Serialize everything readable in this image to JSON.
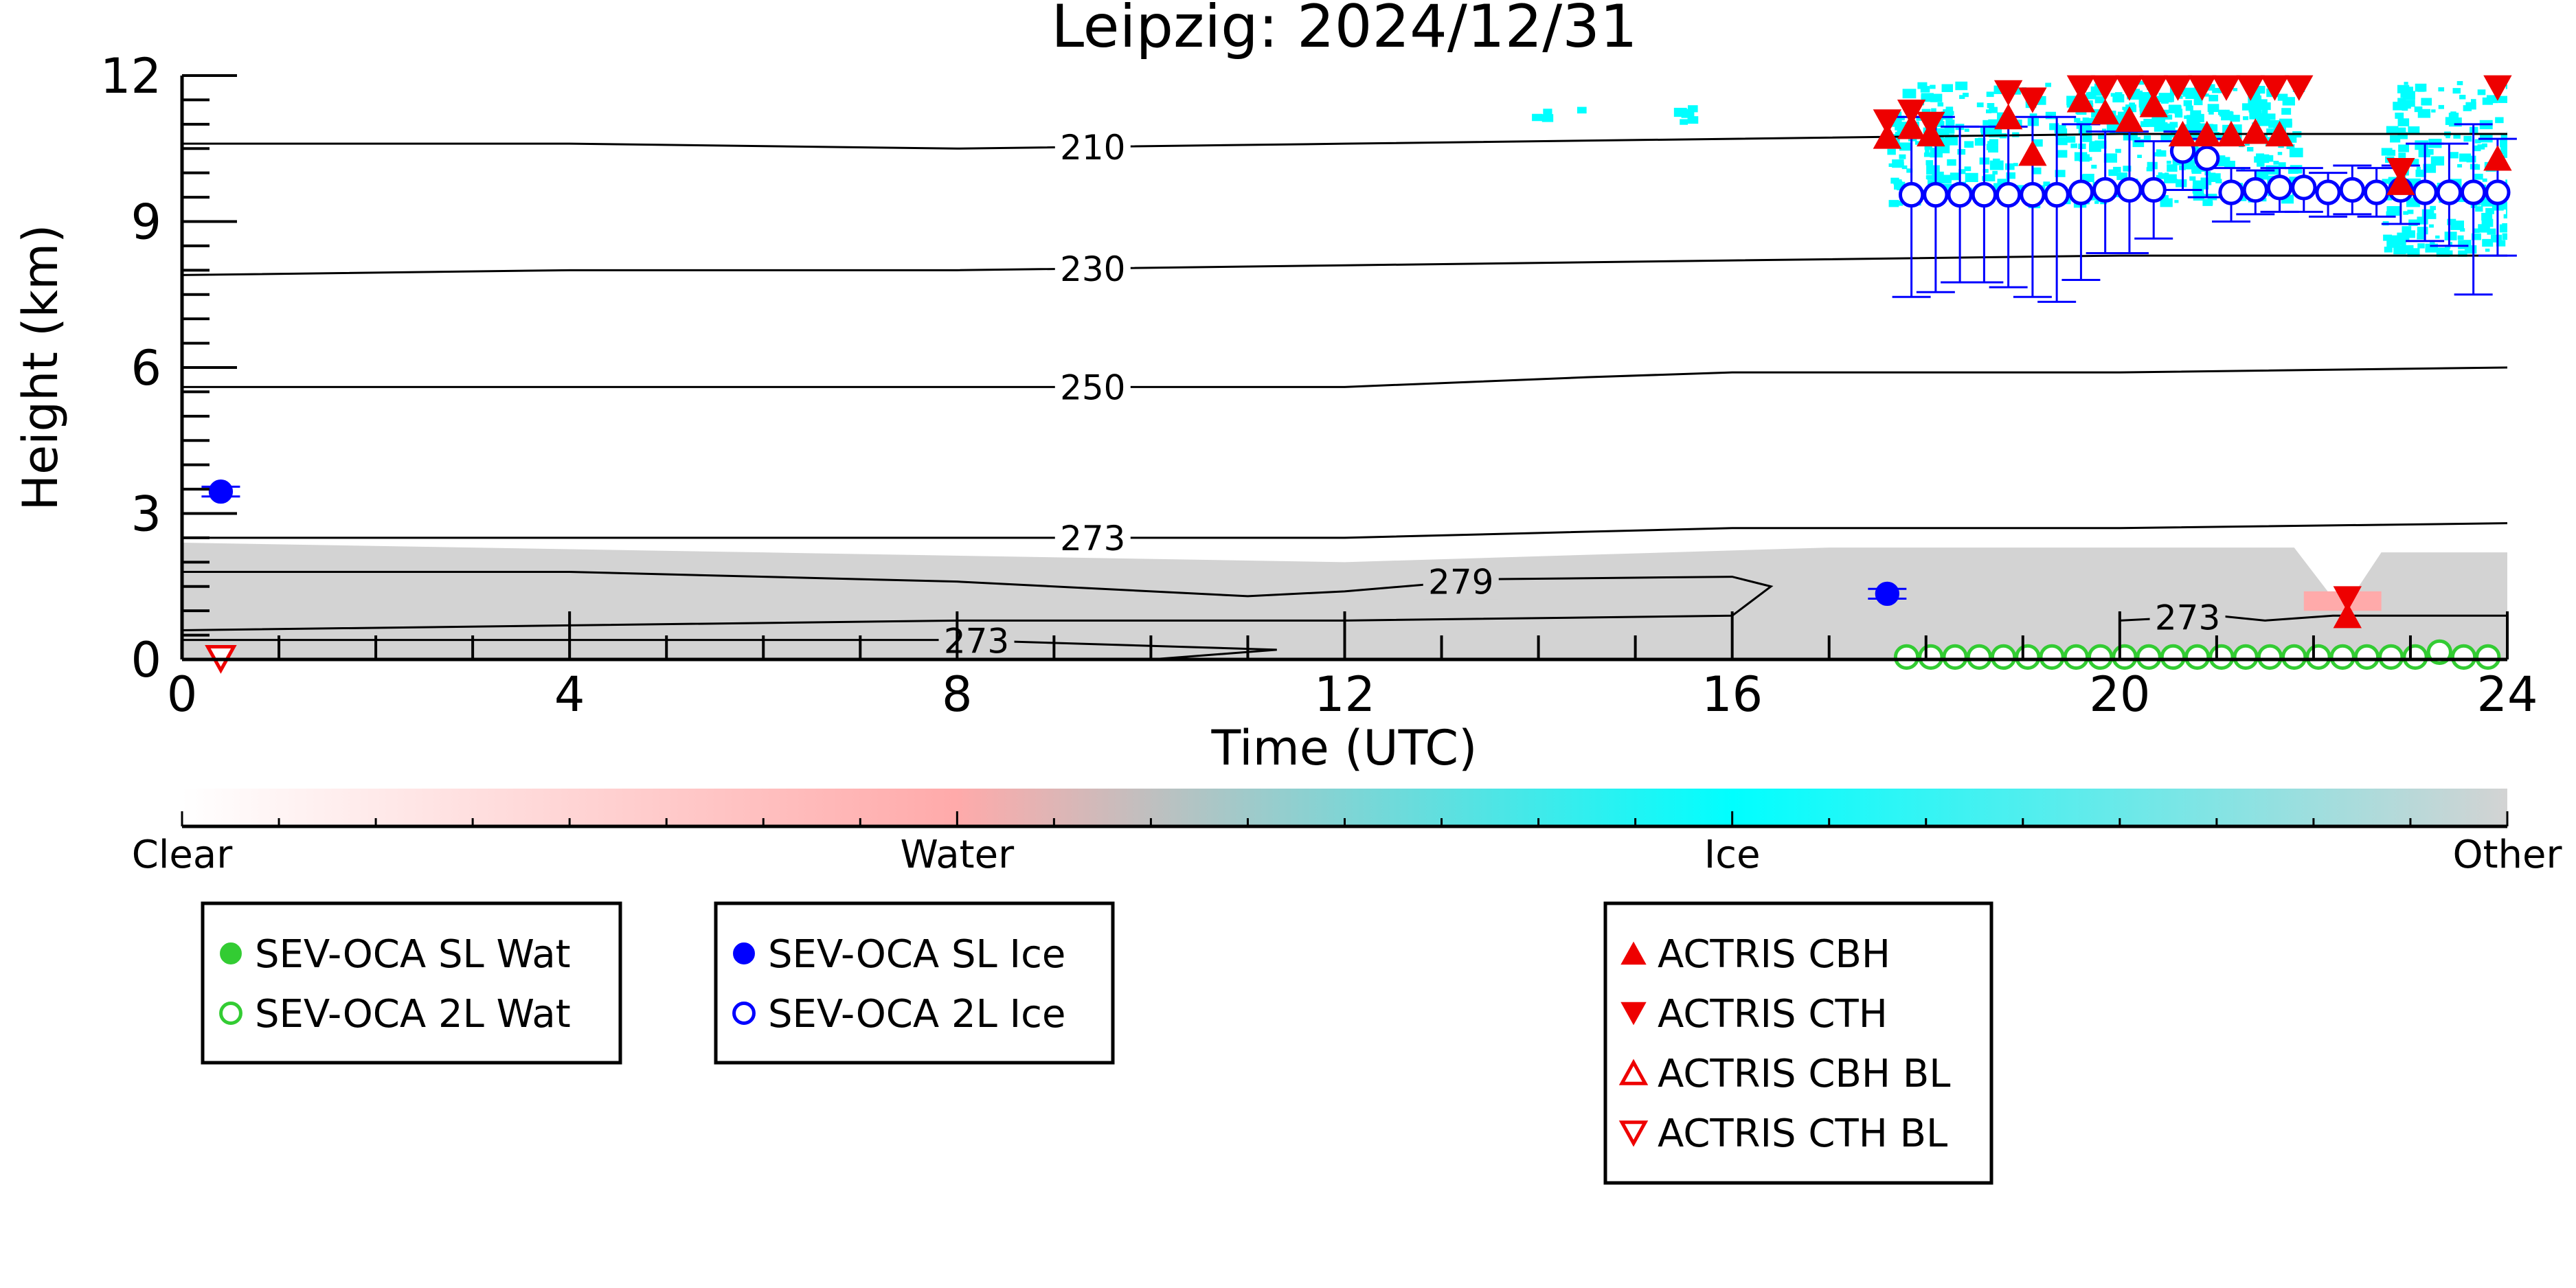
{
  "chart_data": {
    "type": "scatter",
    "title": "Leipzig: 2024/12/31",
    "xlabel": "Time (UTC)",
    "ylabel": "Height (km)",
    "xlim": [
      0,
      24
    ],
    "ylim": [
      0,
      12
    ],
    "x_ticks": [
      0,
      4,
      8,
      12,
      16,
      20,
      24
    ],
    "y_ticks": [
      0,
      3,
      6,
      9,
      12
    ],
    "grid": false,
    "background_mask": {
      "ice_color": "#00ffff",
      "water_color": "#ffaaaa",
      "other_color": "#d3d3d3",
      "other_layer": [
        [
          0,
          0,
          2.4
        ],
        [
          6,
          0,
          2.2
        ],
        [
          12,
          0,
          2.0
        ],
        [
          17,
          0,
          2.3
        ],
        [
          21.8,
          0,
          2.3
        ],
        [
          22.3,
          0,
          1.0
        ],
        [
          22.7,
          0,
          2.2
        ],
        [
          24,
          0,
          2.2
        ]
      ],
      "ice_regions": [
        {
          "x0": 17.6,
          "x1": 21.8,
          "y0": 9.4,
          "y1": 11.9
        },
        {
          "x0": 19.6,
          "x1": 21.8,
          "y0": 10.8,
          "y1": 11.9
        },
        {
          "x0": 22.7,
          "x1": 24.0,
          "y0": 8.4,
          "y1": 11.9
        },
        {
          "x0": 15.3,
          "x1": 15.6,
          "y0": 11.1,
          "y1": 11.5
        },
        {
          "x0": 13.9,
          "x1": 14.4,
          "y0": 11.2,
          "y1": 11.4
        }
      ],
      "water_regions": [
        {
          "x0": 21.9,
          "x1": 22.7,
          "y0": 1.0,
          "y1": 1.4
        }
      ]
    },
    "temperature_contours": [
      {
        "label": "210",
        "label_x": 9.4,
        "points": [
          [
            0,
            10.6
          ],
          [
            4,
            10.6
          ],
          [
            8,
            10.5
          ],
          [
            12,
            10.6
          ],
          [
            16,
            10.7
          ],
          [
            20,
            10.8
          ],
          [
            24,
            10.8
          ]
        ]
      },
      {
        "label": "230",
        "label_x": 9.4,
        "points": [
          [
            0,
            7.9
          ],
          [
            4,
            8.0
          ],
          [
            8,
            8.0
          ],
          [
            12,
            8.1
          ],
          [
            16,
            8.2
          ],
          [
            20,
            8.3
          ],
          [
            24,
            8.3
          ]
        ]
      },
      {
        "label": "250",
        "label_x": 9.4,
        "points": [
          [
            0,
            5.6
          ],
          [
            4,
            5.6
          ],
          [
            8,
            5.6
          ],
          [
            12,
            5.6
          ],
          [
            14.5,
            5.8
          ],
          [
            16,
            5.9
          ],
          [
            20,
            5.9
          ],
          [
            24,
            6.0
          ]
        ]
      },
      {
        "label": "273",
        "label_x": 9.4,
        "points": [
          [
            0,
            2.5
          ],
          [
            4,
            2.5
          ],
          [
            8,
            2.5
          ],
          [
            10,
            2.5
          ],
          [
            12,
            2.5
          ],
          [
            14,
            2.6
          ],
          [
            16,
            2.7
          ],
          [
            20,
            2.7
          ],
          [
            24,
            2.8
          ]
        ]
      },
      {
        "label": "279",
        "label_x": 13.2,
        "points": [
          [
            0,
            1.8
          ],
          [
            4,
            1.8
          ],
          [
            8,
            1.6
          ],
          [
            11,
            1.3
          ],
          [
            12,
            1.4
          ],
          [
            13.5,
            1.65
          ],
          [
            16,
            1.7
          ],
          [
            16.4,
            1.5
          ],
          [
            16,
            0.9
          ],
          [
            12,
            0.8
          ],
          [
            8,
            0.8
          ],
          [
            4,
            0.7
          ],
          [
            0,
            0.6
          ]
        ]
      },
      {
        "label": "273",
        "label_x": 8.2,
        "points": [
          [
            0.0,
            0.4
          ],
          [
            4,
            0.4
          ],
          [
            8,
            0.4
          ],
          [
            11.3,
            0.2
          ],
          [
            10.0,
            0.0
          ]
        ]
      },
      {
        "label": "273",
        "label_x": 20.7,
        "points": [
          [
            20.0,
            0.8
          ],
          [
            21.0,
            0.9
          ],
          [
            21.5,
            0.8
          ],
          [
            22.2,
            0.9
          ],
          [
            24.0,
            0.9
          ]
        ]
      }
    ],
    "series": [
      {
        "name": "SEV-OCA SL Wat",
        "marker": "filled-circle",
        "color": "#33cc33",
        "x": [],
        "y": []
      },
      {
        "name": "SEV-OCA 2L Wat",
        "marker": "open-circle",
        "color": "#33cc33",
        "x": [
          17.8,
          18.05,
          18.3,
          18.55,
          18.8,
          19.05,
          19.3,
          19.55,
          19.8,
          20.05,
          20.3,
          20.55,
          20.8,
          21.05,
          21.3,
          21.55,
          21.8,
          22.05,
          22.3,
          22.55,
          22.8,
          23.05,
          23.3,
          23.55,
          23.8
        ],
        "y": [
          0.05,
          0.05,
          0.05,
          0.05,
          0.05,
          0.05,
          0.05,
          0.05,
          0.05,
          0.05,
          0.05,
          0.05,
          0.05,
          0.05,
          0.05,
          0.05,
          0.05,
          0.05,
          0.05,
          0.05,
          0.05,
          0.05,
          0.15,
          0.05,
          0.05
        ]
      },
      {
        "name": "SEV-OCA SL Ice",
        "marker": "filled-circle",
        "color": "#0000ff",
        "x": [
          0.4,
          17.6
        ],
        "y": [
          3.45,
          1.35
        ],
        "yerr_low": [
          0.1,
          0.1
        ],
        "yerr_high": [
          0.1,
          0.1
        ]
      },
      {
        "name": "SEV-OCA 2L Ice",
        "marker": "open-circle",
        "color": "#0000ff",
        "x": [
          17.85,
          18.1,
          18.35,
          18.6,
          18.85,
          19.1,
          19.35,
          19.6,
          19.85,
          20.1,
          20.35,
          20.65,
          20.9,
          21.15,
          21.4,
          21.65,
          21.9,
          22.15,
          22.4,
          22.65,
          22.9,
          23.15,
          23.4,
          23.65,
          23.9
        ],
        "y": [
          9.55,
          9.55,
          9.55,
          9.55,
          9.55,
          9.55,
          9.55,
          9.6,
          9.65,
          9.65,
          9.65,
          10.45,
          10.3,
          9.6,
          9.65,
          9.7,
          9.7,
          9.6,
          9.65,
          9.6,
          9.65,
          9.6,
          9.6,
          9.6,
          9.6
        ],
        "yerr_low": [
          2.1,
          2.0,
          1.8,
          1.8,
          1.9,
          2.1,
          2.2,
          1.8,
          1.3,
          1.3,
          1.0,
          0.8,
          0.8,
          0.6,
          0.5,
          0.5,
          0.5,
          0.5,
          0.5,
          0.5,
          0.7,
          1.0,
          1.1,
          2.1,
          1.3
        ],
        "yerr_high": [
          1.6,
          1.6,
          1.4,
          1.4,
          1.4,
          1.6,
          1.6,
          1.4,
          1.2,
          1.2,
          1.0,
          0.4,
          0.4,
          0.5,
          0.4,
          0.4,
          0.4,
          0.4,
          0.5,
          0.5,
          0.5,
          1.0,
          1.0,
          1.4,
          1.1
        ]
      },
      {
        "name": "ACTRIS CBH",
        "marker": "triangle-up",
        "color": "#ee0000",
        "x": [
          17.6,
          17.85,
          18.05,
          18.85,
          19.1,
          19.6,
          19.85,
          20.1,
          20.35,
          20.65,
          20.9,
          21.15,
          21.4,
          21.65,
          22.35,
          22.9,
          23.9
        ],
        "y": [
          10.75,
          10.95,
          10.8,
          11.15,
          10.4,
          11.5,
          11.25,
          11.1,
          11.4,
          10.8,
          10.8,
          10.8,
          10.85,
          10.8,
          0.9,
          9.8,
          10.3
        ]
      },
      {
        "name": "ACTRIS CTH",
        "marker": "triangle-down",
        "color": "#ee0000",
        "x": [
          17.6,
          17.85,
          18.05,
          18.85,
          19.1,
          19.6,
          19.85,
          20.1,
          20.35,
          20.6,
          20.85,
          21.1,
          21.35,
          21.6,
          21.85,
          22.35,
          22.9,
          23.9
        ],
        "y": [
          11.05,
          11.25,
          11.0,
          11.65,
          11.5,
          11.75,
          11.75,
          11.75,
          11.75,
          11.75,
          11.75,
          11.75,
          11.75,
          11.75,
          11.75,
          1.25,
          10.05,
          11.75
        ]
      },
      {
        "name": "ACTRIS CBH BL",
        "marker": "open-triangle-up",
        "color": "#ee0000",
        "x": [],
        "y": []
      },
      {
        "name": "ACTRIS CTH BL",
        "marker": "open-triangle-down",
        "color": "#ee0000",
        "x": [
          0.4
        ],
        "y": [
          0.02
        ]
      }
    ],
    "colorbar": {
      "labels": [
        "Clear",
        "Water",
        "Ice",
        "Other"
      ],
      "stops": [
        "#ffffff",
        "#ffaaaa",
        "#00ffff",
        "#d3d3d3"
      ]
    },
    "legend": {
      "placement": "below",
      "groups": [
        [
          "SEV-OCA SL Wat",
          "SEV-OCA 2L Wat"
        ],
        [
          "SEV-OCA SL Ice",
          "SEV-OCA 2L Ice"
        ],
        [
          "ACTRIS CBH",
          "ACTRIS CTH",
          "ACTRIS CBH BL",
          "ACTRIS CTH BL"
        ]
      ]
    }
  }
}
